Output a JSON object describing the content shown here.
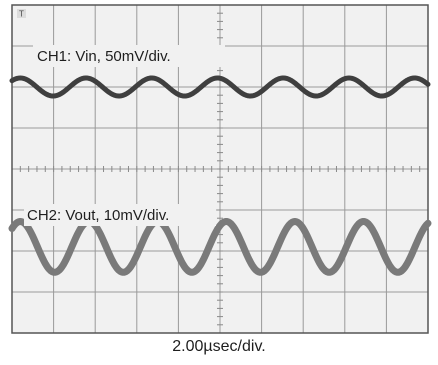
{
  "chart_data": {
    "type": "line",
    "grid": true,
    "divisions": {
      "x": 10,
      "y": 8
    },
    "timebase": "2.00µsec/div.",
    "channels": [
      {
        "label": "CH1: Vin, 50mV/div.",
        "color": "#3f3f3f",
        "center_div": 2.0,
        "amplitude_div": 0.22,
        "period_div": 1.58,
        "x_range_div": [
          0,
          10
        ]
      },
      {
        "label": "CH2: Vout, 10mV/div.",
        "color": "#7a7a7a",
        "center_div": 5.9,
        "amplitude_div": 0.62,
        "period_div": 1.65,
        "x_range_div": [
          0,
          10
        ]
      }
    ]
  },
  "trigger_marker": {
    "icon": "trigger-icon",
    "glyph": "T"
  }
}
